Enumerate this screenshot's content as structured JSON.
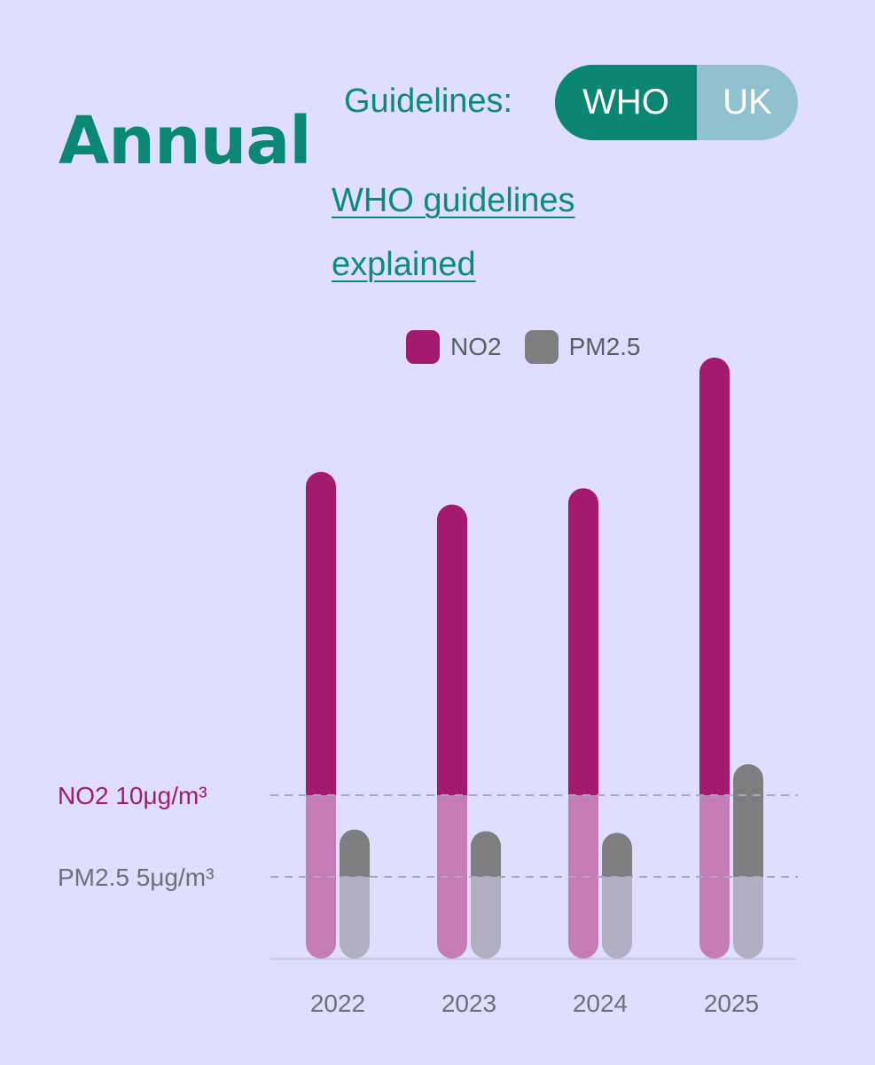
{
  "header": {
    "title": "Annual",
    "guidelines_label": "Guidelines:",
    "toggle": {
      "options": [
        "WHO",
        "UK"
      ],
      "selected": "WHO"
    },
    "link_text": "WHO guidelines explained"
  },
  "colors": {
    "no2": "#a31a6e",
    "no2_below": "#c57db8",
    "pm25": "#7e7e80",
    "pm25_below": "#b1afc1",
    "accent": "#0b8673"
  },
  "chart_data": {
    "type": "bar",
    "categories": [
      "2022",
      "2023",
      "2024",
      "2025"
    ],
    "series": [
      {
        "name": "NO2",
        "values": [
          29.8,
          27.8,
          28.8,
          36.8
        ]
      },
      {
        "name": "PM2.5",
        "values": [
          7.9,
          7.8,
          7.7,
          11.9
        ]
      }
    ],
    "guidelines": [
      {
        "label": "NO2 10μg/m³",
        "value": 10
      },
      {
        "label": "PM2.5 5μg/m³",
        "value": 5
      }
    ],
    "ylim": [
      0,
      40
    ],
    "legend_position": "top",
    "grid": false
  }
}
